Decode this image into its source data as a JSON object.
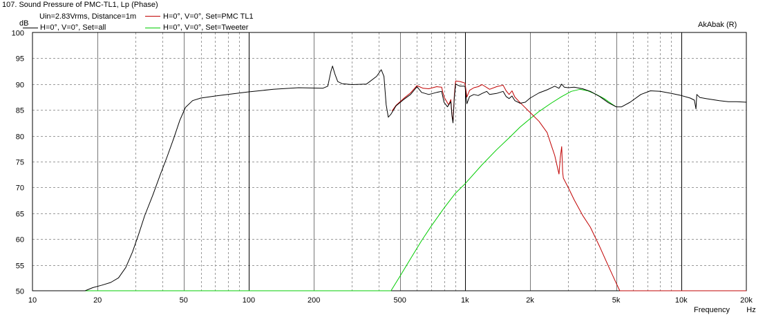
{
  "header": {
    "title": "107. Sound Pressure of PMC-TL1, Lp (Phase)",
    "conditions": "Uin=2.83Vrms, Distance=1m",
    "brand": "AkAbak (R)"
  },
  "chart_data": {
    "type": "line",
    "title": "107. Sound Pressure of PMC-TL1, Lp (Phase)",
    "ylabel": "dB",
    "xlabel": "Frequency",
    "x_unit": "Hz",
    "x_scale": "log",
    "xlim": [
      10,
      20000
    ],
    "ylim": [
      50,
      100
    ],
    "grid": true,
    "legend": "top-left",
    "x_ticks": [
      {
        "value": 10,
        "label": "10"
      },
      {
        "value": 20,
        "label": "20"
      },
      {
        "value": 50,
        "label": "50"
      },
      {
        "value": 100,
        "label": "100"
      },
      {
        "value": 200,
        "label": "200"
      },
      {
        "value": 500,
        "label": "500"
      },
      {
        "value": 1000,
        "label": "1k"
      },
      {
        "value": 2000,
        "label": "2k"
      },
      {
        "value": 5000,
        "label": "5k"
      },
      {
        "value": 10000,
        "label": "10k"
      },
      {
        "value": 20000,
        "label": "20k"
      }
    ],
    "y_ticks": [
      100,
      95,
      90,
      85,
      80,
      75,
      70,
      65,
      60,
      55,
      50
    ],
    "series": [
      {
        "name": "H=0°, V=0°, Set=all",
        "color": "#000000",
        "points": [
          [
            10,
            50
          ],
          [
            17.5,
            50
          ],
          [
            18,
            50.2
          ],
          [
            19,
            50.6
          ],
          [
            21,
            51.1
          ],
          [
            23,
            51.6
          ],
          [
            25,
            52.5
          ],
          [
            27,
            54.5
          ],
          [
            29,
            57.5
          ],
          [
            31,
            61
          ],
          [
            33,
            64.5
          ],
          [
            36,
            68.5
          ],
          [
            39,
            72.5
          ],
          [
            42,
            76
          ],
          [
            45,
            79.5
          ],
          [
            48,
            83
          ],
          [
            51,
            85.5
          ],
          [
            55,
            86.8
          ],
          [
            60,
            87.3
          ],
          [
            70,
            87.7
          ],
          [
            80,
            88
          ],
          [
            100,
            88.5
          ],
          [
            130,
            89
          ],
          [
            170,
            89.3
          ],
          [
            220,
            89.2
          ],
          [
            232,
            89.6
          ],
          [
            240,
            92.5
          ],
          [
            244,
            93.5
          ],
          [
            250,
            92
          ],
          [
            258,
            90.5
          ],
          [
            270,
            90.1
          ],
          [
            300,
            89.9
          ],
          [
            350,
            90
          ],
          [
            390,
            91.5
          ],
          [
            410,
            92.8
          ],
          [
            422,
            91.5
          ],
          [
            432,
            86
          ],
          [
            442,
            83.6
          ],
          [
            455,
            84.2
          ],
          [
            480,
            85.8
          ],
          [
            520,
            87
          ],
          [
            560,
            88
          ],
          [
            600,
            89.5
          ],
          [
            630,
            88.4
          ],
          [
            680,
            88
          ],
          [
            740,
            88.4
          ],
          [
            780,
            88.6
          ],
          [
            800,
            86.5
          ],
          [
            830,
            85.6
          ],
          [
            860,
            86.6
          ],
          [
            870,
            84
          ],
          [
            880,
            82.5
          ],
          [
            893,
            87.5
          ],
          [
            905,
            90
          ],
          [
            950,
            89.6
          ],
          [
            1000,
            89.6
          ],
          [
            1020,
            86.2
          ],
          [
            1050,
            87.6
          ],
          [
            1100,
            88
          ],
          [
            1150,
            87.8
          ],
          [
            1200,
            88.2
          ],
          [
            1260,
            88.6
          ],
          [
            1300,
            88
          ],
          [
            1400,
            88.2
          ],
          [
            1500,
            88.6
          ],
          [
            1550,
            87.6
          ],
          [
            1600,
            87.2
          ],
          [
            1650,
            87.7
          ],
          [
            1700,
            86.8
          ],
          [
            1800,
            86.3
          ],
          [
            1900,
            86.5
          ],
          [
            2000,
            87.3
          ],
          [
            2200,
            88.3
          ],
          [
            2400,
            88.9
          ],
          [
            2600,
            89.6
          ],
          [
            2720,
            89.2
          ],
          [
            2800,
            90
          ],
          [
            2880,
            89.4
          ],
          [
            3000,
            89.3
          ],
          [
            3200,
            89.4
          ],
          [
            3500,
            89.1
          ],
          [
            3800,
            88.6
          ],
          [
            4200,
            87.6
          ],
          [
            4600,
            86.4
          ],
          [
            5000,
            85.6
          ],
          [
            5300,
            85.6
          ],
          [
            5800,
            86.5
          ],
          [
            6500,
            88
          ],
          [
            7200,
            88.7
          ],
          [
            8000,
            88.6
          ],
          [
            9000,
            88.2
          ],
          [
            10000,
            87.8
          ],
          [
            11000,
            87.3
          ],
          [
            11500,
            86.9
          ],
          [
            11700,
            85.2
          ],
          [
            11800,
            88
          ],
          [
            12200,
            87.4
          ],
          [
            13000,
            87.2
          ],
          [
            15000,
            86.8
          ],
          [
            16500,
            86.6
          ],
          [
            18000,
            86.6
          ],
          [
            20000,
            86.5
          ]
        ]
      },
      {
        "name": "H=0°, V=0°, Set=PMC TL1",
        "color": "#c00000",
        "points": [
          [
            460,
            84.8
          ],
          [
            480,
            85.9
          ],
          [
            520,
            87.2
          ],
          [
            560,
            88.3
          ],
          [
            600,
            89.7
          ],
          [
            640,
            89.2
          ],
          [
            680,
            89.1
          ],
          [
            740,
            89.5
          ],
          [
            780,
            89.4
          ],
          [
            800,
            87.5
          ],
          [
            840,
            86
          ],
          [
            860,
            87
          ],
          [
            870,
            84.2
          ],
          [
            880,
            82.7
          ],
          [
            893,
            88
          ],
          [
            905,
            90.6
          ],
          [
            950,
            90.5
          ],
          [
            1000,
            90.2
          ],
          [
            1020,
            87.5
          ],
          [
            1050,
            88.8
          ],
          [
            1100,
            89.3
          ],
          [
            1150,
            89.5
          ],
          [
            1200,
            89.9
          ],
          [
            1300,
            89
          ],
          [
            1400,
            89.5
          ],
          [
            1500,
            89.8
          ],
          [
            1550,
            88.7
          ],
          [
            1600,
            88
          ],
          [
            1650,
            88.7
          ],
          [
            1700,
            87.5
          ],
          [
            1800,
            86.4
          ],
          [
            2000,
            84.5
          ],
          [
            2200,
            82.8
          ],
          [
            2400,
            80.6
          ],
          [
            2500,
            78.3
          ],
          [
            2600,
            76.2
          ],
          [
            2680,
            73.8
          ],
          [
            2720,
            72.6
          ],
          [
            2760,
            75.8
          ],
          [
            2800,
            77.9
          ],
          [
            2830,
            73
          ],
          [
            2850,
            71.8
          ],
          [
            3000,
            70
          ],
          [
            3200,
            67.6
          ],
          [
            3500,
            64.6
          ],
          [
            3800,
            62.3
          ],
          [
            4200,
            58.5
          ],
          [
            4600,
            54.8
          ],
          [
            5000,
            51.5
          ],
          [
            5200,
            50
          ],
          [
            20000,
            50
          ]
        ]
      },
      {
        "name": "H=0°, V=0°, Set=Tweeter",
        "color": "#00cc00",
        "points": [
          [
            10,
            50
          ],
          [
            455,
            50
          ],
          [
            500,
            52.8
          ],
          [
            560,
            56.2
          ],
          [
            630,
            59.7
          ],
          [
            700,
            62.6
          ],
          [
            800,
            66
          ],
          [
            900,
            68.8
          ],
          [
            1000,
            70.7
          ],
          [
            1200,
            74.4
          ],
          [
            1400,
            77.3
          ],
          [
            1600,
            79.6
          ],
          [
            1800,
            81.7
          ],
          [
            2000,
            83.3
          ],
          [
            2200,
            84.7
          ],
          [
            2500,
            86.3
          ],
          [
            2800,
            87.6
          ],
          [
            3100,
            88.6
          ],
          [
            3400,
            89
          ],
          [
            3700,
            88.7
          ],
          [
            4000,
            88.1
          ],
          [
            4400,
            87.2
          ],
          [
            4800,
            86.1
          ],
          [
            5000,
            85.6
          ]
        ]
      }
    ]
  }
}
